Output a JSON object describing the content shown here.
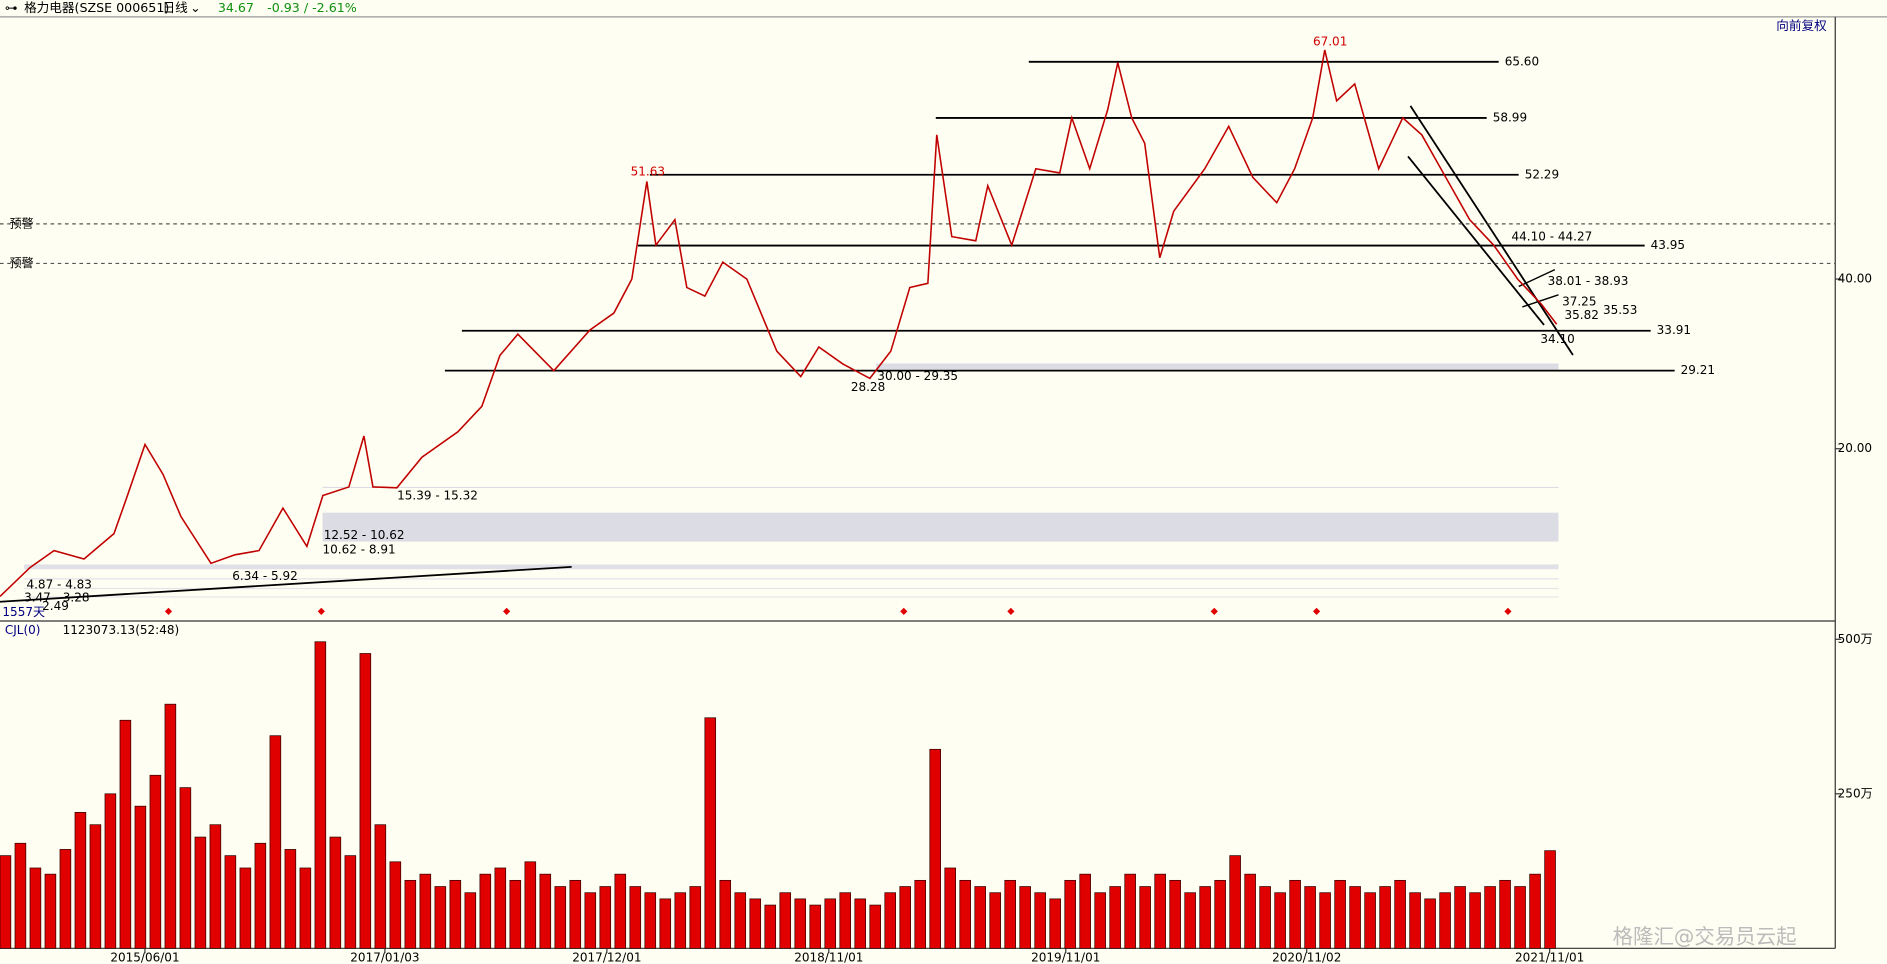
{
  "header": {
    "name": "格力电器(SZSE 000651)",
    "period": "日线",
    "price": "34.67",
    "change": "-0.93 / -2.61%",
    "adjust": "向前复权",
    "days": "1557天"
  },
  "chart_data": [
    {
      "type": "line",
      "color": "#c00000",
      "x": [
        0,
        30,
        54,
        84,
        114,
        126,
        145,
        163,
        181,
        211,
        235,
        259,
        283,
        307,
        323,
        349,
        364,
        373,
        397,
        422,
        458,
        482,
        500,
        518,
        554,
        590,
        614,
        632,
        647,
        656,
        675,
        687,
        705,
        723,
        747,
        777,
        801,
        819,
        843,
        870,
        891,
        910,
        928,
        937,
        952,
        976,
        988,
        1012,
        1036,
        1060,
        1072,
        1090,
        1108,
        1118,
        1132,
        1145,
        1160,
        1174,
        1205,
        1229,
        1253,
        1277,
        1295,
        1313,
        1325,
        1337,
        1355,
        1379,
        1403,
        1422,
        1446,
        1470,
        1494,
        1518,
        1542,
        1557
      ],
      "values": [
        2.6,
        6,
        8,
        7,
        10,
        14,
        20.5,
        17,
        12,
        6.5,
        7.5,
        8,
        13,
        8.5,
        14.5,
        15.5,
        21.5,
        15.5,
        15.4,
        19,
        22,
        25,
        31,
        33.5,
        29.2,
        34,
        36,
        40,
        51.5,
        44,
        47,
        39,
        38,
        42,
        40,
        31.5,
        28.5,
        32,
        30,
        28.3,
        31.5,
        39,
        39.5,
        57,
        45,
        44.5,
        51,
        44,
        53,
        52.5,
        59,
        53,
        60,
        65.5,
        59,
        56,
        42.5,
        48,
        53,
        58,
        52,
        49,
        53,
        59,
        67,
        61,
        63,
        53,
        59,
        57,
        52,
        47,
        44,
        40,
        37,
        34.67
      ],
      "xlim": [
        0,
        1560
      ],
      "ylim": [
        -0.3,
        70.9
      ],
      "yticks": [
        {
          "value": 20,
          "label": "20.00"
        },
        {
          "value": 40,
          "label": "40.00"
        }
      ],
      "levels": [
        {
          "value": 65.6,
          "label": "65.60",
          "x_range": [
            1029,
            1499
          ]
        },
        {
          "value": 58.99,
          "label": "58.99",
          "x_range": [
            936,
            1487
          ]
        },
        {
          "value": 52.29,
          "label": "52.29",
          "x_range": [
            650,
            1519
          ]
        },
        {
          "value": 43.95,
          "label": "43.95",
          "x_range": [
            638,
            1645
          ]
        },
        {
          "value": 33.91,
          "label": "33.91",
          "x_range": [
            462,
            1651
          ]
        },
        {
          "value": 29.21,
          "label": "29.21",
          "x_range": [
            445,
            1675
          ]
        }
      ],
      "alerts": [
        {
          "label": "预警",
          "value": 46.5
        },
        {
          "label": "预警",
          "value": 41.84
        }
      ],
      "annotations": [
        {
          "text": "51.63",
          "color": "#d00000"
        },
        {
          "text": "67.01",
          "color": "#d00000"
        },
        {
          "text": "28.28"
        },
        {
          "text": "30.00 - 29.35"
        },
        {
          "text": "15.39 - 15.32"
        },
        {
          "text": "12.52 - 10.62"
        },
        {
          "text": "10.62 - 8.91"
        },
        {
          "text": "6.34 - 5.92"
        },
        {
          "text": "4.87 - 4.83"
        },
        {
          "text": "3.47 - 3.28"
        },
        {
          "text": "2.49"
        },
        {
          "text": "44.10 - 44.27"
        },
        {
          "text": "38.01 - 38.93"
        },
        {
          "text": "37.25"
        },
        {
          "text": "35.82"
        },
        {
          "text": "35.53"
        },
        {
          "text": "34.10"
        }
      ]
    },
    {
      "type": "bar",
      "title": "CJL(0)",
      "subtitle": "1123073.13(52:48)",
      "color": "#e00000",
      "x": [
        0,
        15,
        30,
        45,
        60,
        75,
        90,
        105,
        120,
        135,
        150,
        165,
        180,
        195,
        210,
        225,
        240,
        255,
        270,
        285,
        300,
        315,
        330,
        345,
        360,
        375,
        390,
        405,
        420,
        435,
        450,
        465,
        480,
        495,
        510,
        525,
        540,
        555,
        570,
        585,
        600,
        615,
        630,
        645,
        660,
        675,
        690,
        705,
        720,
        735,
        750,
        765,
        780,
        795,
        810,
        825,
        840,
        855,
        870,
        885,
        900,
        915,
        930,
        945,
        960,
        975,
        990,
        1005,
        1020,
        1035,
        1050,
        1065,
        1080,
        1095,
        1110,
        1125,
        1140,
        1155,
        1170,
        1185,
        1200,
        1215,
        1230,
        1245,
        1260,
        1275,
        1290,
        1305,
        1320,
        1335,
        1350,
        1365,
        1380,
        1395,
        1410,
        1425,
        1440,
        1455,
        1470,
        1485,
        1500,
        1515,
        1530,
        1545
      ],
      "values": [
        150,
        170,
        130,
        120,
        160,
        220,
        200,
        250,
        369,
        230,
        280,
        395,
        260,
        180,
        200,
        150,
        130,
        170,
        344,
        160,
        130,
        496,
        180,
        150,
        477,
        200,
        140,
        110,
        120,
        100,
        110,
        90,
        120,
        130,
        110,
        140,
        120,
        100,
        110,
        90,
        100,
        120,
        100,
        90,
        80,
        90,
        100,
        373,
        110,
        90,
        80,
        70,
        90,
        80,
        70,
        80,
        90,
        80,
        70,
        90,
        100,
        110,
        322,
        130,
        110,
        100,
        90,
        110,
        100,
        90,
        80,
        110,
        120,
        90,
        100,
        120,
        100,
        120,
        110,
        90,
        100,
        110,
        150,
        120,
        100,
        90,
        110,
        100,
        90,
        110,
        100,
        90,
        100,
        110,
        90,
        80,
        90,
        100,
        90,
        100,
        110,
        100,
        120,
        158
      ],
      "xlim": [
        0,
        1560
      ],
      "ylim": [
        0,
        514
      ],
      "yticks": [
        {
          "value": 250,
          "label": "250万"
        },
        {
          "value": 500,
          "label": "500万"
        }
      ],
      "xticks": [
        {
          "value": 145,
          "label": "2015/06/01"
        },
        {
          "value": 385,
          "label": "2017/01/03"
        },
        {
          "value": 607,
          "label": "2017/12/01"
        },
        {
          "value": 829,
          "label": "2018/11/01"
        },
        {
          "value": 1066,
          "label": "2019/11/01"
        },
        {
          "value": 1307,
          "label": "2020/11/02"
        },
        {
          "value": 1550,
          "label": "2021/11/01"
        }
      ]
    }
  ],
  "watermark": "格隆汇@交易员云起"
}
